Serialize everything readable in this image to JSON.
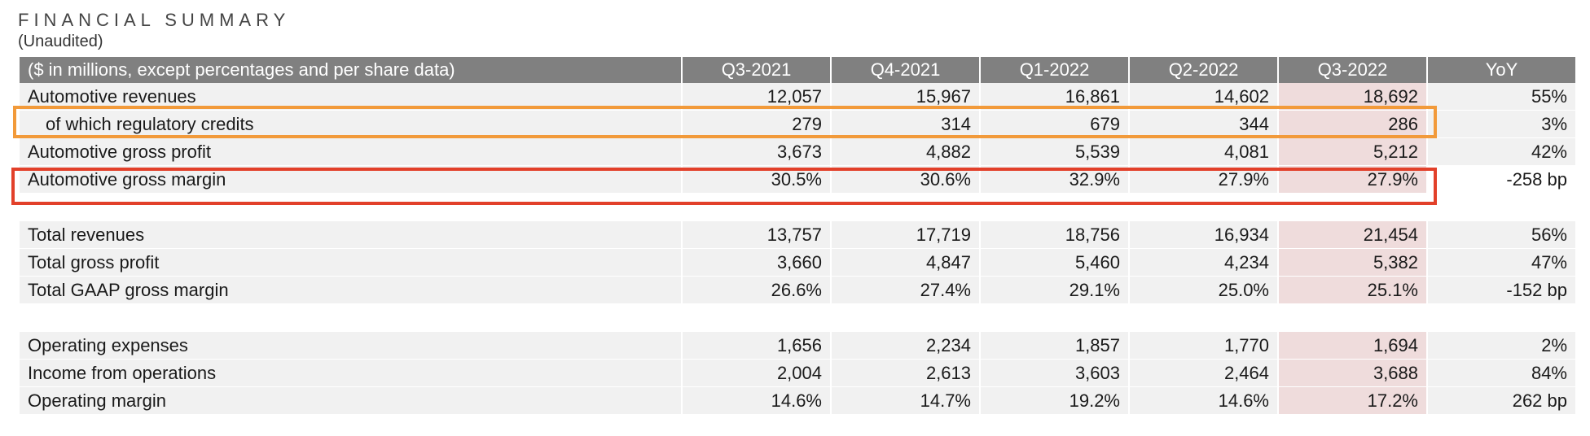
{
  "title": "FINANCIAL SUMMARY",
  "subtitle": "(Unaudited)",
  "table": {
    "header_label": "($ in millions, except percentages and per share data)",
    "columns": [
      "Q3-2021",
      "Q4-2021",
      "Q1-2022",
      "Q2-2022",
      "Q3-2022",
      "YoY"
    ],
    "rows": [
      {
        "label": "Automotive revenues",
        "values": [
          "12,057",
          "15,967",
          "16,861",
          "14,602",
          "18,692",
          "55%"
        ]
      },
      {
        "label": "of which regulatory credits",
        "values": [
          "279",
          "314",
          "679",
          "344",
          "286",
          "3%"
        ]
      },
      {
        "label": "Automotive gross profit",
        "values": [
          "3,673",
          "4,882",
          "5,539",
          "4,081",
          "5,212",
          "42%"
        ]
      },
      {
        "label": "Automotive gross margin",
        "values": [
          "30.5%",
          "30.6%",
          "32.9%",
          "27.9%",
          "27.9%",
          "-258 bp"
        ]
      },
      {
        "label": "Total revenues",
        "values": [
          "13,757",
          "17,719",
          "18,756",
          "16,934",
          "21,454",
          "56%"
        ]
      },
      {
        "label": "Total gross profit",
        "values": [
          "3,660",
          "4,847",
          "5,460",
          "4,234",
          "5,382",
          "47%"
        ]
      },
      {
        "label": "Total GAAP gross margin",
        "values": [
          "26.6%",
          "27.4%",
          "29.1%",
          "25.0%",
          "25.1%",
          "-152 bp"
        ]
      },
      {
        "label": "Operating expenses",
        "values": [
          "1,656",
          "2,234",
          "1,857",
          "1,770",
          "1,694",
          "2%"
        ]
      },
      {
        "label": "Income from operations",
        "values": [
          "2,004",
          "2,613",
          "3,603",
          "2,464",
          "3,688",
          "84%"
        ]
      },
      {
        "label": "Operating margin",
        "values": [
          "14.6%",
          "14.7%",
          "19.2%",
          "14.6%",
          "17.2%",
          "262 bp"
        ]
      }
    ]
  },
  "colors": {
    "header_bg": "#808080",
    "row_bg": "#f1f1f1",
    "highlight_col_bg": "#efdcdc",
    "orange_box": "#f29a3a",
    "red_box": "#e2402a"
  }
}
